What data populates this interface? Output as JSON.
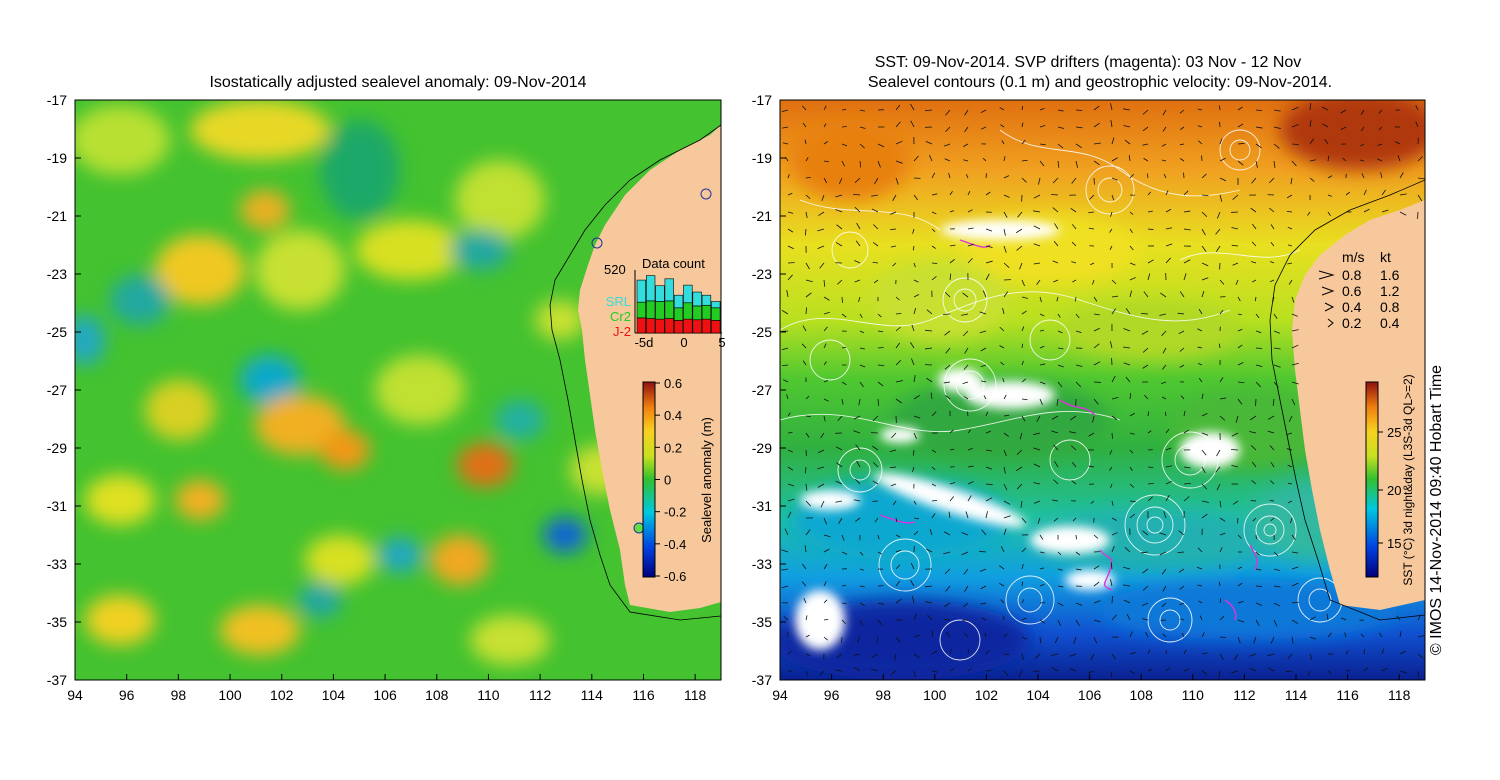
{
  "left_panel": {
    "title": "Isostatically adjusted sealevel anomaly: 09-Nov-2014",
    "x_ticks": [
      "94",
      "96",
      "98",
      "100",
      "102",
      "104",
      "106",
      "108",
      "110",
      "112",
      "114",
      "116",
      "118"
    ],
    "y_ticks": [
      "-17",
      "-19",
      "-21",
      "-23",
      "-25",
      "-27",
      "-29",
      "-31",
      "-33",
      "-35",
      "-37"
    ],
    "data_count": {
      "title": "Data count",
      "max_label": "520",
      "legend": [
        "SRL",
        "Cr2",
        "J-2"
      ],
      "x_labels": [
        "-5d",
        "0",
        "5"
      ],
      "colors": {
        "SRL": "#33dddd",
        "Cr2": "#22cc22",
        "J-2": "#ee1111"
      },
      "bars": [
        {
          "j2": 0.24,
          "cr2": 0.25,
          "srl": 0.35
        },
        {
          "j2": 0.23,
          "cr2": 0.28,
          "srl": 0.4
        },
        {
          "j2": 0.22,
          "cr2": 0.28,
          "srl": 0.25
        },
        {
          "j2": 0.23,
          "cr2": 0.28,
          "srl": 0.35
        },
        {
          "j2": 0.2,
          "cr2": 0.2,
          "srl": 0.2
        },
        {
          "j2": 0.22,
          "cr2": 0.26,
          "srl": 0.28
        },
        {
          "j2": 0.21,
          "cr2": 0.22,
          "srl": 0.22
        },
        {
          "j2": 0.22,
          "cr2": 0.22,
          "srl": 0.16
        },
        {
          "j2": 0.2,
          "cr2": 0.2,
          "srl": 0.1
        }
      ]
    },
    "colorbar": {
      "label": "Sealevel anomaly (m)",
      "ticks": [
        "0.6",
        "0.4",
        "0.2",
        "0",
        "-0.2",
        "-0.4",
        "-0.6"
      ]
    }
  },
  "right_panel": {
    "title_line1": "SST: 09-Nov-2014. SVP drifters (magenta): 03 Nov - 12 Nov",
    "title_line2": "Sealevel contours (0.1 m) and geostrophic velocity: 09-Nov-2014.",
    "x_ticks": [
      "94",
      "96",
      "98",
      "100",
      "102",
      "104",
      "106",
      "108",
      "110",
      "112",
      "114",
      "116",
      "118"
    ],
    "y_ticks": [
      "-17",
      "-19",
      "-21",
      "-23",
      "-25",
      "-27",
      "-29",
      "-31",
      "-33",
      "-35",
      "-37"
    ],
    "velocity_key": {
      "header_ms": "m/s",
      "header_kt": "kt",
      "rows": [
        {
          "ms": "0.8",
          "kt": "1.6"
        },
        {
          "ms": "0.6",
          "kt": "1.2"
        },
        {
          "ms": "0.4",
          "kt": "0.8"
        },
        {
          "ms": "0.2",
          "kt": "0.4"
        }
      ]
    },
    "colorbar": {
      "label": "SST (°C) 3d night&day (L3S-3d QL>=2)",
      "ticks": [
        "25",
        "20",
        "15"
      ]
    },
    "credit": "© IMOS 14-Nov-2014 09:40 Hobart Time"
  },
  "colors": {
    "land": "#f7c89c",
    "sla_base": "#44c230",
    "sst_warm": "#e8a020",
    "sst_cold": "#1a5fcc"
  }
}
